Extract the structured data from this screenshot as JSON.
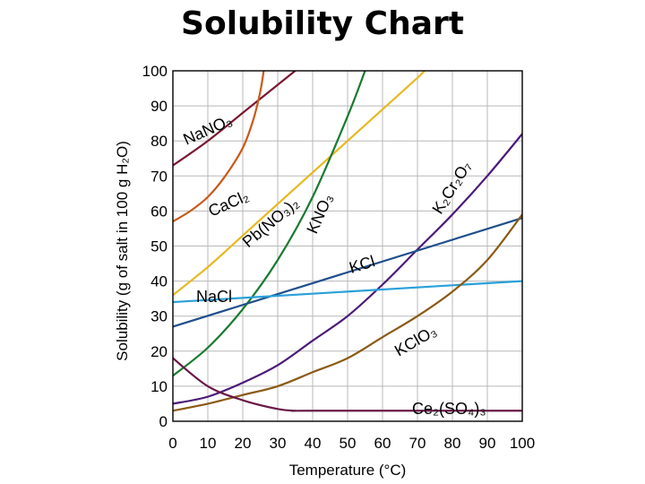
{
  "page_title": "Solubility Chart",
  "chart_data": {
    "type": "line",
    "xlabel": "Temperature (°C)",
    "ylabel": "Solubility (g of salt in 100 g H₂O)",
    "xlim": [
      0,
      100
    ],
    "ylim": [
      0,
      100
    ],
    "xticks": [
      0,
      10,
      20,
      30,
      40,
      50,
      60,
      70,
      80,
      90,
      100
    ],
    "yticks": [
      0,
      10,
      20,
      30,
      40,
      50,
      60,
      70,
      80,
      90,
      100
    ],
    "grid": true,
    "series": [
      {
        "name": "NaNO₃",
        "color": "#7a1832",
        "x": [
          0,
          10,
          20,
          30,
          35
        ],
        "y": [
          73,
          80,
          88,
          96,
          100
        ]
      },
      {
        "name": "CaCl₂",
        "color": "#c85a1a",
        "x": [
          0,
          5,
          10,
          15,
          20,
          23,
          25,
          26
        ],
        "y": [
          57,
          60,
          64,
          70,
          78,
          86,
          94,
          100
        ]
      },
      {
        "name": "Pb(NO₃)₂",
        "color": "#e8b820",
        "x": [
          0,
          10,
          20,
          30,
          40,
          50,
          60,
          70,
          72
        ],
        "y": [
          36,
          44,
          53,
          62,
          71,
          80,
          89,
          98,
          100
        ]
      },
      {
        "name": "KNO₃",
        "color": "#1a7a30",
        "x": [
          0,
          10,
          20,
          30,
          40,
          50,
          55
        ],
        "y": [
          13,
          21,
          32,
          46,
          64,
          87,
          100
        ]
      },
      {
        "name": "K₂Cr₂O₇",
        "color": "#4a1a78",
        "x": [
          0,
          10,
          20,
          30,
          40,
          50,
          60,
          70,
          80,
          90,
          100
        ],
        "y": [
          5,
          7,
          11,
          16,
          23,
          30,
          39,
          49,
          59,
          70,
          82
        ]
      },
      {
        "name": "KCl",
        "color": "#1f4f8c",
        "x": [
          0,
          100
        ],
        "y": [
          27,
          58
        ]
      },
      {
        "name": "NaCl",
        "color": "#2aa0d8",
        "x": [
          0,
          100
        ],
        "y": [
          34,
          40
        ]
      },
      {
        "name": "KClO₃",
        "color": "#8a5a14",
        "x": [
          0,
          10,
          20,
          30,
          40,
          50,
          60,
          70,
          80,
          90,
          100
        ],
        "y": [
          3,
          5,
          7.5,
          10,
          14,
          18,
          24,
          30,
          37,
          46,
          59
        ]
      },
      {
        "name": "Ce₂(SO₄)₃",
        "color": "#6a1848",
        "x": [
          0,
          10,
          20,
          30,
          35,
          40,
          100
        ],
        "y": [
          18,
          10,
          6,
          3.5,
          3,
          3,
          3
        ]
      }
    ]
  }
}
